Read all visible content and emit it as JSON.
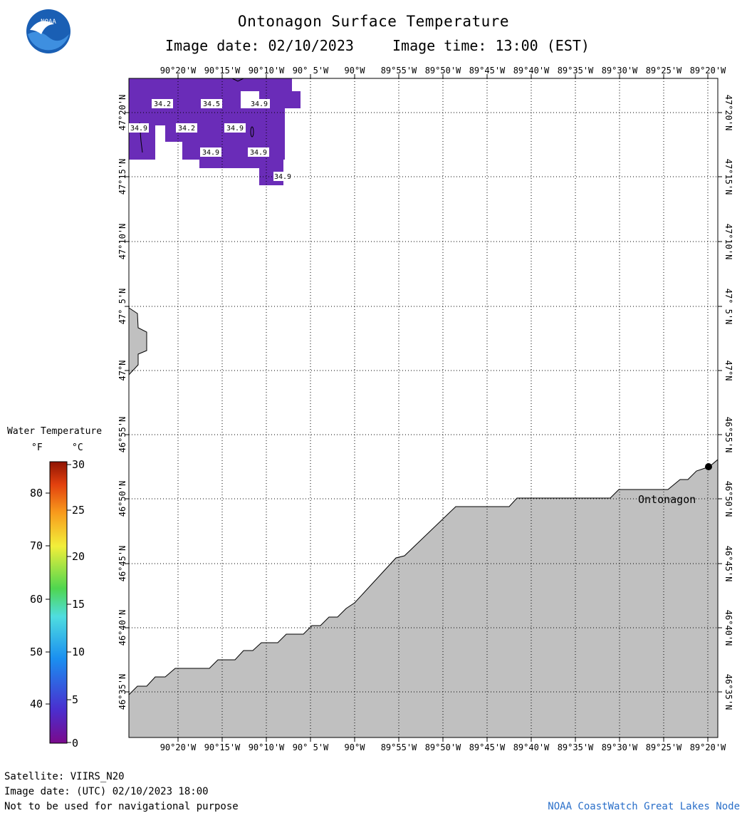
{
  "header": {
    "title": "Ontonagon Surface Temperature",
    "image_date": "Image date: 02/10/2023",
    "image_time": "Image time: 13:00 (EST)"
  },
  "logo": {
    "text": "NOAA"
  },
  "map": {
    "lon_labels": [
      "90°20'W",
      "90°15'W",
      "90°10'W",
      "90° 5'W",
      "90°W",
      "89°55'W",
      "89°50'W",
      "89°45'W",
      "89°40'W",
      "89°35'W",
      "89°30'W",
      "89°25'W",
      "89°20'W"
    ],
    "lat_labels": [
      "47°20'N",
      "47°15'N",
      "47°10'N",
      "47° 5'N",
      "47°N",
      "46°55'N",
      "46°50'N",
      "46°45'N",
      "46°40'N",
      "46°35'N"
    ],
    "place_label": "Ontonagon",
    "temperature_labels": [
      "34.2",
      "34.5",
      "34.9",
      "34.9",
      "34.2",
      "34.9",
      "34.9",
      "34.9",
      "34.9"
    ],
    "land_color": "#c0c0c0",
    "water_temp_color": "#6a2cb8"
  },
  "legend": {
    "title": "Water Temperature",
    "unit_f": "°F",
    "unit_c": "°C",
    "f_ticks": [
      "80",
      "70",
      "60",
      "50",
      "40"
    ],
    "c_ticks": [
      "30",
      "25",
      "20",
      "15",
      "10",
      "5",
      "0"
    ]
  },
  "footer": {
    "satellite": "Satellite: VIIRS_N20",
    "utc_date": "Image date: (UTC) 02/10/2023  18:00",
    "disclaimer": "Not to be used for navigational purpose",
    "credit": "NOAA CoastWatch Great Lakes Node"
  }
}
